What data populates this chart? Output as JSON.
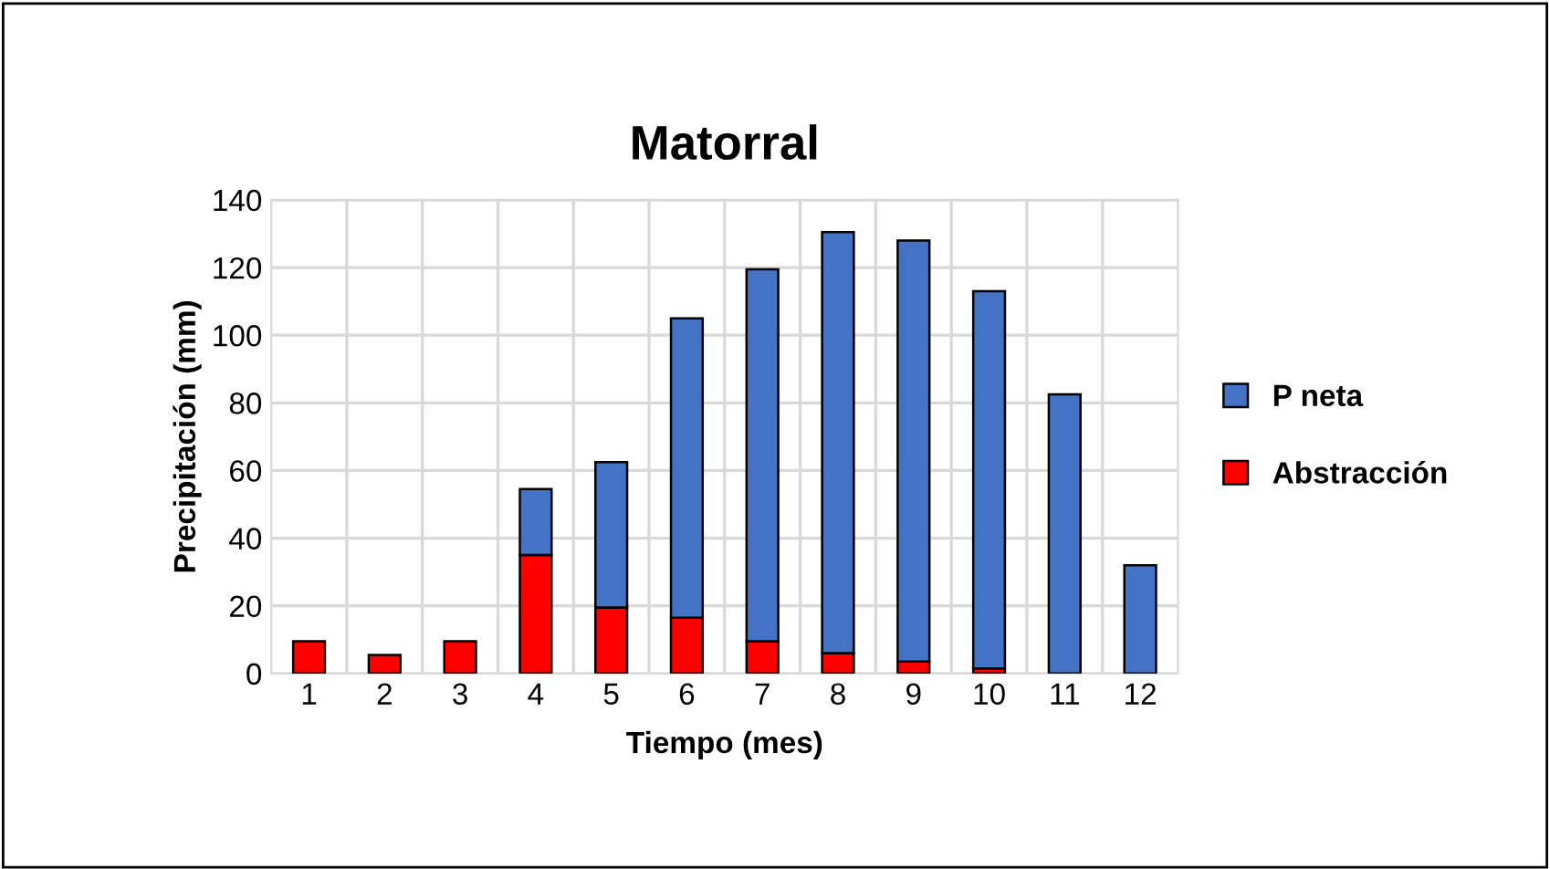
{
  "chart_data": {
    "type": "bar",
    "title": "Matorral",
    "xlabel": "Tiempo (mes)",
    "ylabel": "Precipitación (mm)",
    "categories": [
      "1",
      "2",
      "3",
      "4",
      "5",
      "6",
      "7",
      "8",
      "9",
      "10",
      "11",
      "12"
    ],
    "stacked": true,
    "series": [
      {
        "name": "Abstracción",
        "color": "#ff0000",
        "values": [
          9.5,
          5.5,
          9.5,
          35,
          19.5,
          16.5,
          9.5,
          6,
          3.5,
          1.5,
          null,
          null
        ]
      },
      {
        "name": "P neta",
        "color": "#4472c4",
        "values": [
          null,
          null,
          null,
          19.5,
          43,
          88.5,
          110,
          124.5,
          124.5,
          111.5,
          82.5,
          32
        ]
      }
    ],
    "ylim": [
      0,
      140
    ],
    "yticks": [
      0,
      20,
      40,
      60,
      80,
      100,
      120,
      140
    ],
    "grid": true,
    "legend": "right"
  }
}
